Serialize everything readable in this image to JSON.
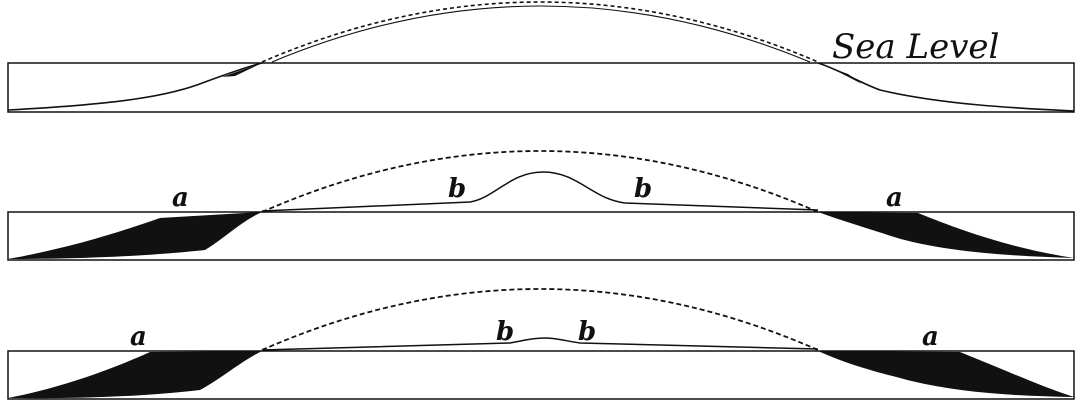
{
  "diagram": {
    "sea_level_label": "Sea Level",
    "stages": [
      {
        "id": "stage-1",
        "labels": []
      },
      {
        "id": "stage-2",
        "labels": [
          "a",
          "b",
          "b",
          "a"
        ]
      },
      {
        "id": "stage-3",
        "labels": [
          "a",
          "b",
          "b",
          "a"
        ]
      }
    ],
    "colors": {
      "ink": "#111111",
      "background": "#ffffff"
    }
  }
}
